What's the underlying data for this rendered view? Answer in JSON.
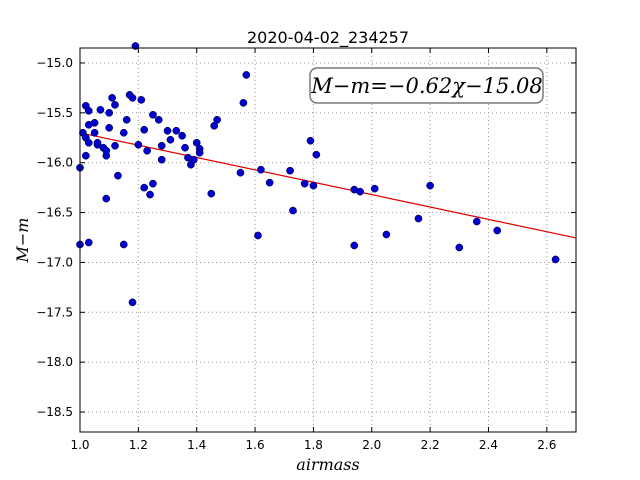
{
  "chart_data": {
    "type": "scatter",
    "title": "2020-04-02_234257",
    "xlabel": "airmass",
    "ylabel": "M−m",
    "xlim": [
      1.0,
      2.7
    ],
    "ylim": [
      -18.7,
      -14.85
    ],
    "y_inverted_order": "top-to-bottom increasing magnitude",
    "grid": true,
    "x_ticks": [
      1.0,
      1.2,
      1.4,
      1.6,
      1.8,
      2.0,
      2.2,
      2.4,
      2.6
    ],
    "x_tick_labels": [
      "1.0",
      "1.2",
      "1.4",
      "1.6",
      "1.8",
      "2.0",
      "2.2",
      "2.4",
      "2.6"
    ],
    "y_ticks": [
      -15.0,
      -15.5,
      -16.0,
      -16.5,
      -17.0,
      -17.5,
      -18.0,
      -18.5
    ],
    "y_tick_labels": [
      "−15.0",
      "−15.5",
      "−16.0",
      "−16.5",
      "−17.0",
      "−17.5",
      "−18.0",
      "−18.5"
    ],
    "annotation": "M−m=−0.62χ−15.08",
    "colors": {
      "points": "#0000cc",
      "fit": "#dd0000",
      "grid": "#999999"
    },
    "fit": {
      "slope": -0.62,
      "intercept": -15.08,
      "x_range": [
        1.0,
        2.7
      ]
    },
    "points": [
      [
        1.0,
        -16.05
      ],
      [
        1.0,
        -16.82
      ],
      [
        1.01,
        -15.7
      ],
      [
        1.02,
        -15.75
      ],
      [
        1.02,
        -15.43
      ],
      [
        1.02,
        -15.93
      ],
      [
        1.03,
        -15.48
      ],
      [
        1.03,
        -15.62
      ],
      [
        1.03,
        -15.8
      ],
      [
        1.03,
        -16.8
      ],
      [
        1.05,
        -15.6
      ],
      [
        1.05,
        -15.7
      ],
      [
        1.06,
        -15.82
      ],
      [
        1.06,
        -15.8
      ],
      [
        1.07,
        -15.47
      ],
      [
        1.08,
        -15.85
      ],
      [
        1.09,
        -15.93
      ],
      [
        1.09,
        -16.36
      ],
      [
        1.09,
        -15.88
      ],
      [
        1.1,
        -15.65
      ],
      [
        1.1,
        -15.5
      ],
      [
        1.11,
        -15.35
      ],
      [
        1.12,
        -15.83
      ],
      [
        1.12,
        -15.42
      ],
      [
        1.13,
        -16.13
      ],
      [
        1.15,
        -16.82
      ],
      [
        1.15,
        -15.7
      ],
      [
        1.16,
        -15.57
      ],
      [
        1.17,
        -15.32
      ],
      [
        1.18,
        -15.35
      ],
      [
        1.18,
        -17.4
      ],
      [
        1.19,
        -14.83
      ],
      [
        1.2,
        -15.82
      ],
      [
        1.21,
        -15.37
      ],
      [
        1.22,
        -15.67
      ],
      [
        1.22,
        -16.25
      ],
      [
        1.23,
        -15.88
      ],
      [
        1.24,
        -16.32
      ],
      [
        1.25,
        -16.21
      ],
      [
        1.25,
        -15.52
      ],
      [
        1.27,
        -15.57
      ],
      [
        1.28,
        -15.83
      ],
      [
        1.28,
        -15.97
      ],
      [
        1.3,
        -15.68
      ],
      [
        1.31,
        -15.77
      ],
      [
        1.33,
        -15.68
      ],
      [
        1.35,
        -15.73
      ],
      [
        1.36,
        -15.85
      ],
      [
        1.37,
        -15.95
      ],
      [
        1.38,
        -16.02
      ],
      [
        1.39,
        -15.97
      ],
      [
        1.4,
        -15.8
      ],
      [
        1.41,
        -15.86
      ],
      [
        1.41,
        -15.9
      ],
      [
        1.45,
        -16.31
      ],
      [
        1.46,
        -15.63
      ],
      [
        1.47,
        -15.57
      ],
      [
        1.55,
        -16.1
      ],
      [
        1.56,
        -15.4
      ],
      [
        1.57,
        -15.12
      ],
      [
        1.61,
        -16.73
      ],
      [
        1.62,
        -16.07
      ],
      [
        1.65,
        -16.2
      ],
      [
        1.72,
        -16.08
      ],
      [
        1.73,
        -16.48
      ],
      [
        1.77,
        -16.21
      ],
      [
        1.79,
        -15.78
      ],
      [
        1.8,
        -16.23
      ],
      [
        1.81,
        -15.92
      ],
      [
        1.94,
        -16.27
      ],
      [
        1.94,
        -16.83
      ],
      [
        1.96,
        -16.29
      ],
      [
        2.01,
        -16.26
      ],
      [
        2.05,
        -16.72
      ],
      [
        2.16,
        -16.56
      ],
      [
        2.2,
        -16.23
      ],
      [
        2.3,
        -16.85
      ],
      [
        2.36,
        -16.59
      ],
      [
        2.43,
        -16.68
      ],
      [
        2.63,
        -16.97
      ]
    ]
  }
}
